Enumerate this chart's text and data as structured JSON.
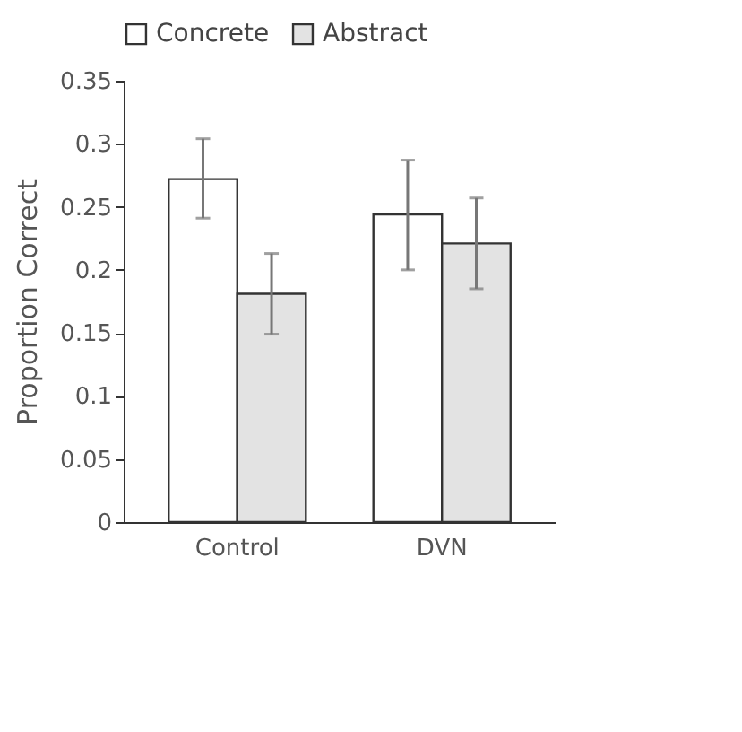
{
  "chart_data": {
    "type": "bar",
    "ylabel": "Proportion Correct",
    "categories": [
      "Control",
      "DVN"
    ],
    "series": [
      {
        "name": "Concrete",
        "color": "#ffffff",
        "values": [
          0.272,
          0.244
        ],
        "errors": [
          [
            0.241,
            0.304
          ],
          [
            0.2,
            0.287
          ]
        ]
      },
      {
        "name": "Abstract",
        "color": "#e3e3e3",
        "values": [
          0.181,
          0.221
        ],
        "errors": [
          [
            0.149,
            0.213
          ],
          [
            0.185,
            0.257
          ]
        ]
      }
    ],
    "ylim": [
      0,
      0.35
    ],
    "yticks": [
      0,
      0.05,
      0.1,
      0.15,
      0.2,
      0.25,
      0.3,
      0.35
    ],
    "grid": false,
    "legend": "top"
  }
}
